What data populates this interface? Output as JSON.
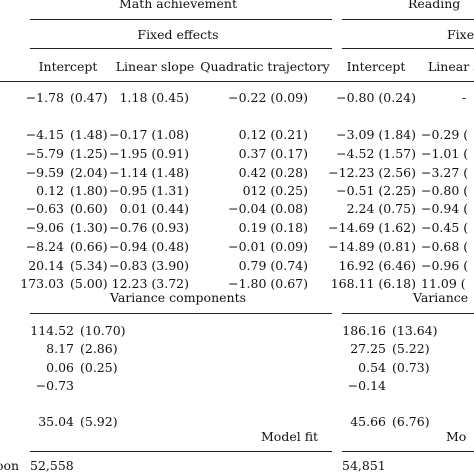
{
  "headers": {
    "math_achievement": "Math achievement",
    "reading_achievement": "Reading",
    "fixed_effects_math": "Fixed effects",
    "fixed_effects_reading": "Fixe",
    "intercept_math": "Intercept",
    "linear_slope_math": "Linear slope",
    "quadratic_math": "Quadratic trajectory",
    "intercept_reading": "Intercept",
    "linear_slope_reading": "Linear s"
  },
  "fixed_rows": [
    {
      "m_int": "−1.78",
      "m_int_se": "(0.47)",
      "m_lin": "1.18 (0.45)",
      "m_quad": "−0.22 (0.09)",
      "r_int": "−0.80 (0.24)",
      "r_lin": "-"
    },
    {
      "m_int": "−4.15",
      "m_int_se": "(1.48)",
      "m_lin": "−0.17 (1.08)",
      "m_quad": "0.12 (0.21)",
      "r_int": "−3.09 (1.84)",
      "r_lin": "−0.29 ("
    },
    {
      "m_int": "−5.79",
      "m_int_se": "(1.25)",
      "m_lin": "−1.95 (0.91)",
      "m_quad": "0.37 (0.17)",
      "r_int": "−4.52 (1.57)",
      "r_lin": "−1.01 ("
    },
    {
      "m_int": "−9.59",
      "m_int_se": "(2.04)",
      "m_lin": "−1.14 (1.48)",
      "m_quad": "0.42 (0.28)",
      "r_int": "−12.23 (2.56)",
      "r_lin": "−3.27 ("
    },
    {
      "m_int": "0.12",
      "m_int_se": "(1.80)",
      "m_lin": "−0.95 (1.31)",
      "m_quad": "012 (0.25)",
      "r_int": "−0.51 (2.25)",
      "r_lin": "−0.80 ("
    },
    {
      "m_int": "−0.63",
      "m_int_se": "(0.60)",
      "m_lin": "0.01 (0.44)",
      "m_quad": "−0.04 (0.08)",
      "r_int": "2.24 (0.75)",
      "r_lin": "−0.94 ("
    },
    {
      "m_int": "−9.06",
      "m_int_se": "(1.30)",
      "m_lin": "−0.76 (0.93)",
      "m_quad": "0.19 (0.18)",
      "r_int": "−14.69 (1.62)",
      "r_lin": "−0.45 ("
    },
    {
      "m_int": "−8.24",
      "m_int_se": "(0.66)",
      "m_lin": "−0.94 (0.48)",
      "m_quad": "−0.01 (0.09)",
      "r_int": "−14.89 (0.81)",
      "r_lin": "−0.68 ("
    },
    {
      "m_int": "20.14",
      "m_int_se": "(5.34)",
      "m_lin": "−0.83 (3.90)",
      "m_quad": "0.79 (0.74)",
      "r_int": "16.92 (6.46)",
      "r_lin": "−0.96 ("
    },
    {
      "m_int": "173.03",
      "m_int_se": "(5.00)",
      "m_lin": "12.23 (3.72)",
      "m_quad": "−1.80 (0.67)",
      "r_int": "168.11 (6.18)",
      "r_lin": "11.09 ("
    }
  ],
  "variance": {
    "title_math": "Variance components",
    "title_reading": "Variance",
    "rows": [
      {
        "m_val": "114.52",
        "m_se": "(10.70)",
        "r_val": "186.16",
        "r_se": "(13.64)"
      },
      {
        "m_val": "8.17",
        "m_se": "(2.86)",
        "r_val": "27.25",
        "r_se": "(5.22)"
      },
      {
        "m_val": "0.06",
        "m_se": "(0.25)",
        "r_val": "0.54",
        "r_se": "(0.73)"
      },
      {
        "m_val": "−0.73",
        "m_se": "",
        "r_val": "−0.14",
        "r_se": ""
      },
      {
        "m_val": "35.04",
        "m_se": "(5.92)",
        "r_val": "45.66",
        "r_se": "(6.76)"
      }
    ]
  },
  "model_fit": {
    "title_math": "Model fit",
    "title_reading": "Mo",
    "row_label": "oon",
    "m_val": "52,558",
    "r_val": "54,851"
  }
}
